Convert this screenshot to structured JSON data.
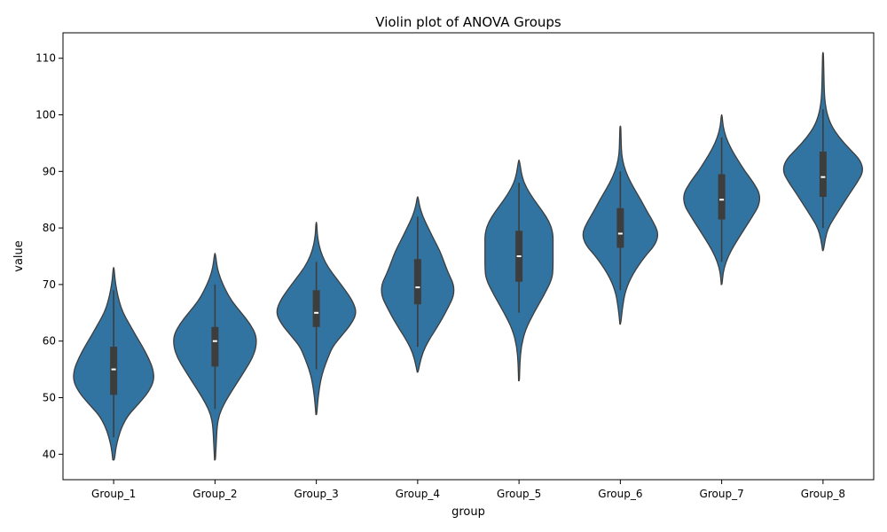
{
  "chart_data": {
    "type": "violin",
    "title": "Violin plot of ANOVA Groups",
    "xlabel": "group",
    "ylabel": "value",
    "ylim": [
      35.5,
      114.5
    ],
    "yticks": [
      40,
      50,
      60,
      70,
      80,
      90,
      100,
      110
    ],
    "grid": false,
    "legend": "none",
    "colors": {
      "violin_fill": "#3274a1",
      "outline": "#3d3d3d",
      "box": "#3d3d3d",
      "median": "#ffffff"
    },
    "categories": [
      "Group_1",
      "Group_2",
      "Group_3",
      "Group_4",
      "Group_5",
      "Group_6",
      "Group_7",
      "Group_8"
    ],
    "groups": [
      {
        "category": "Group_1",
        "min": 39,
        "max": 73,
        "q1": 50.5,
        "median": 55,
        "q3": 59,
        "whisker_low": 43,
        "whisker_high": 69,
        "density": [
          [
            39,
            0.02
          ],
          [
            41,
            0.05
          ],
          [
            43,
            0.11
          ],
          [
            45,
            0.2
          ],
          [
            47,
            0.35
          ],
          [
            49,
            0.6
          ],
          [
            51,
            0.82
          ],
          [
            53,
            0.95
          ],
          [
            55,
            0.93
          ],
          [
            57,
            0.82
          ],
          [
            59,
            0.68
          ],
          [
            61,
            0.52
          ],
          [
            63,
            0.37
          ],
          [
            65,
            0.22
          ],
          [
            67,
            0.13
          ],
          [
            69,
            0.07
          ],
          [
            71,
            0.03
          ],
          [
            73,
            0.01
          ]
        ]
      },
      {
        "category": "Group_2",
        "min": 39,
        "max": 75.5,
        "q1": 55.5,
        "median": 60,
        "q3": 62.5,
        "whisker_low": 48,
        "whisker_high": 70,
        "density": [
          [
            39,
            0.01
          ],
          [
            42,
            0.03
          ],
          [
            45,
            0.05
          ],
          [
            47,
            0.1
          ],
          [
            49,
            0.22
          ],
          [
            51,
            0.38
          ],
          [
            53,
            0.55
          ],
          [
            55,
            0.72
          ],
          [
            57,
            0.88
          ],
          [
            59,
            0.97
          ],
          [
            61,
            0.97
          ],
          [
            63,
            0.83
          ],
          [
            65,
            0.62
          ],
          [
            67,
            0.4
          ],
          [
            69,
            0.25
          ],
          [
            71,
            0.13
          ],
          [
            73,
            0.05
          ],
          [
            75.5,
            0.01
          ]
        ]
      },
      {
        "category": "Group_3",
        "min": 47,
        "max": 81,
        "q1": 62.5,
        "median": 65,
        "q3": 69,
        "whisker_low": 55,
        "whisker_high": 74,
        "density": [
          [
            47,
            0.01
          ],
          [
            50,
            0.04
          ],
          [
            53,
            0.1
          ],
          [
            55,
            0.17
          ],
          [
            57,
            0.27
          ],
          [
            59,
            0.38
          ],
          [
            61,
            0.6
          ],
          [
            63,
            0.82
          ],
          [
            65,
            0.95
          ],
          [
            67,
            0.86
          ],
          [
            69,
            0.68
          ],
          [
            71,
            0.48
          ],
          [
            73,
            0.28
          ],
          [
            75,
            0.14
          ],
          [
            77,
            0.06
          ],
          [
            79,
            0.02
          ],
          [
            81,
            0.01
          ]
        ]
      },
      {
        "category": "Group_4",
        "min": 54.5,
        "max": 85.5,
        "q1": 66.5,
        "median": 69.5,
        "q3": 74.5,
        "whisker_low": 59,
        "whisker_high": 82,
        "density": [
          [
            54.5,
            0.01
          ],
          [
            56,
            0.05
          ],
          [
            58,
            0.12
          ],
          [
            60,
            0.25
          ],
          [
            62,
            0.42
          ],
          [
            64,
            0.58
          ],
          [
            66,
            0.72
          ],
          [
            68,
            0.85
          ],
          [
            70,
            0.85
          ],
          [
            72,
            0.72
          ],
          [
            74,
            0.62
          ],
          [
            76,
            0.52
          ],
          [
            78,
            0.38
          ],
          [
            80,
            0.25
          ],
          [
            82,
            0.12
          ],
          [
            84,
            0.04
          ],
          [
            85.5,
            0.01
          ]
        ]
      },
      {
        "category": "Group_5",
        "min": 53,
        "max": 92,
        "q1": 70.5,
        "median": 75,
        "q3": 79.5,
        "whisker_low": 65,
        "whisker_high": 88,
        "density": [
          [
            53,
            0.01
          ],
          [
            56,
            0.02
          ],
          [
            59,
            0.05
          ],
          [
            62,
            0.15
          ],
          [
            65,
            0.35
          ],
          [
            68,
            0.58
          ],
          [
            71,
            0.78
          ],
          [
            73,
            0.8
          ],
          [
            75,
            0.8
          ],
          [
            77,
            0.8
          ],
          [
            79,
            0.8
          ],
          [
            81,
            0.72
          ],
          [
            83,
            0.55
          ],
          [
            85,
            0.35
          ],
          [
            87,
            0.18
          ],
          [
            89,
            0.07
          ],
          [
            92,
            0.01
          ]
        ]
      },
      {
        "category": "Group_6",
        "min": 63,
        "max": 98,
        "q1": 76.5,
        "median": 79,
        "q3": 83.5,
        "whisker_low": 69,
        "whisker_high": 90,
        "density": [
          [
            63,
            0.01
          ],
          [
            66,
            0.05
          ],
          [
            69,
            0.12
          ],
          [
            72,
            0.3
          ],
          [
            75,
            0.58
          ],
          [
            77,
            0.82
          ],
          [
            79,
            0.9
          ],
          [
            81,
            0.78
          ],
          [
            83,
            0.62
          ],
          [
            85,
            0.48
          ],
          [
            87,
            0.32
          ],
          [
            89,
            0.18
          ],
          [
            91,
            0.08
          ],
          [
            93,
            0.03
          ],
          [
            95,
            0.02
          ],
          [
            98,
            0.01
          ]
        ]
      },
      {
        "category": "Group_7",
        "min": 70,
        "max": 100,
        "q1": 81.5,
        "median": 85,
        "q3": 89.5,
        "whisker_low": 74,
        "whisker_high": 96,
        "density": [
          [
            70,
            0.01
          ],
          [
            72,
            0.03
          ],
          [
            74,
            0.1
          ],
          [
            76,
            0.22
          ],
          [
            78,
            0.38
          ],
          [
            80,
            0.55
          ],
          [
            82,
            0.72
          ],
          [
            84,
            0.88
          ],
          [
            86,
            0.9
          ],
          [
            88,
            0.75
          ],
          [
            90,
            0.55
          ],
          [
            92,
            0.38
          ],
          [
            94,
            0.22
          ],
          [
            96,
            0.1
          ],
          [
            98,
            0.03
          ],
          [
            100,
            0.01
          ]
        ]
      },
      {
        "category": "Group_8",
        "min": 76,
        "max": 111,
        "q1": 85.5,
        "median": 89,
        "q3": 93.5,
        "whisker_low": 80,
        "whisker_high": 101,
        "density": [
          [
            76,
            0.01
          ],
          [
            78,
            0.05
          ],
          [
            80,
            0.12
          ],
          [
            82,
            0.28
          ],
          [
            84,
            0.45
          ],
          [
            86,
            0.62
          ],
          [
            88,
            0.8
          ],
          [
            90,
            0.95
          ],
          [
            92,
            0.88
          ],
          [
            94,
            0.62
          ],
          [
            96,
            0.38
          ],
          [
            98,
            0.2
          ],
          [
            100,
            0.1
          ],
          [
            102,
            0.05
          ],
          [
            104,
            0.03
          ],
          [
            107,
            0.02
          ],
          [
            111,
            0.01
          ]
        ]
      }
    ]
  }
}
